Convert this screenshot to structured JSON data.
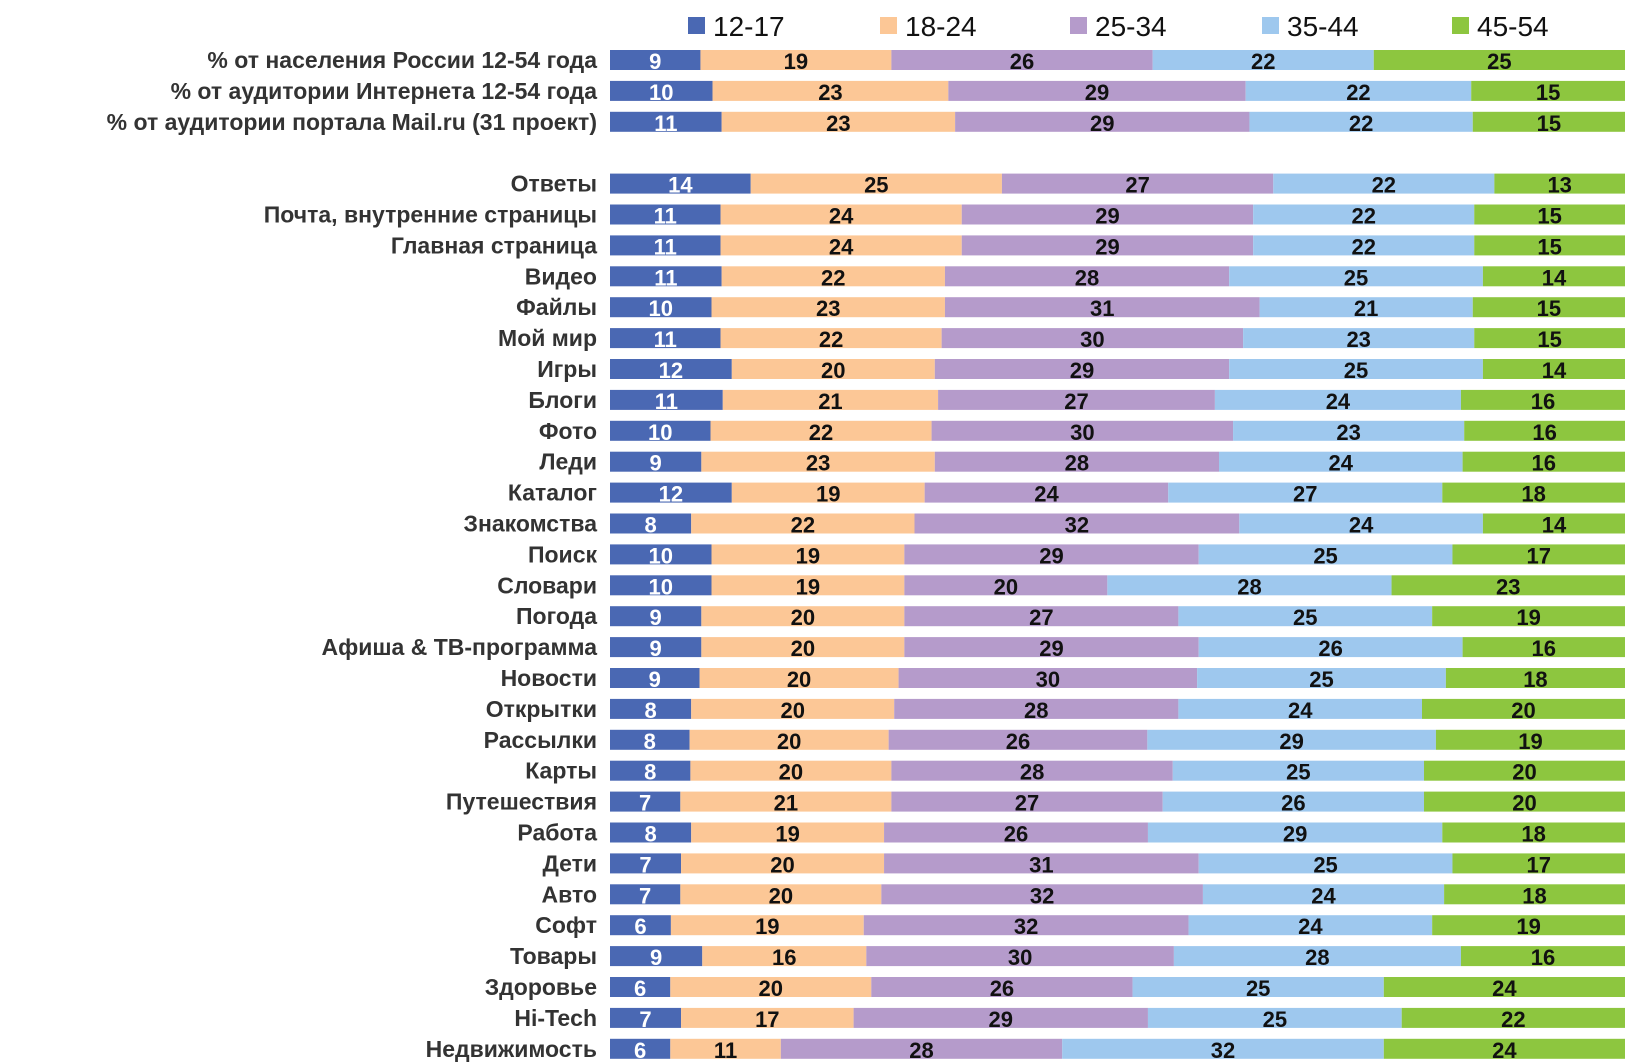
{
  "chart_data": {
    "type": "bar",
    "orientation": "horizontal",
    "stacked": true,
    "title": "",
    "xlabel": "",
    "ylabel": "",
    "legend_position": "top",
    "grid": false,
    "categories": [
      "% от населения России 12-54 года",
      "% от аудитории Интернета 12-54 года",
      "% от аудитории портала Mail.ru (31 проект)",
      "",
      "Ответы",
      "Почта, внутренние страницы",
      "Главная страница",
      "Видео",
      "Файлы",
      "Мой мир",
      "Игры",
      "Блоги",
      "Фото",
      "Леди",
      "Каталог",
      "Знакомства",
      "Поиск",
      "Словари",
      "Погода",
      "Афиша & ТВ-программа",
      "Новости",
      "Открытки",
      "Рассылки",
      "Карты",
      "Путешествия",
      "Работа",
      "Дети",
      "Авто",
      "Софт",
      "Товары",
      "Здоровье",
      "Hi-Tech",
      "Недвижимость"
    ],
    "series": [
      {
        "name": "12-17",
        "color": "#4a68b3",
        "label_color": "#ffffff",
        "values": [
          9,
          10,
          11,
          null,
          14,
          11,
          11,
          11,
          10,
          11,
          12,
          11,
          10,
          9,
          12,
          8,
          10,
          10,
          9,
          9,
          9,
          8,
          8,
          8,
          7,
          8,
          7,
          7,
          6,
          9,
          6,
          7,
          6
        ]
      },
      {
        "name": "18-24",
        "color": "#fcc796",
        "label_color": "#111111",
        "values": [
          19,
          23,
          23,
          null,
          25,
          24,
          24,
          22,
          23,
          22,
          20,
          21,
          22,
          23,
          19,
          22,
          19,
          19,
          20,
          20,
          20,
          20,
          20,
          20,
          21,
          19,
          20,
          20,
          19,
          16,
          20,
          17,
          11
        ]
      },
      {
        "name": "25-34",
        "color": "#b59bcb",
        "label_color": "#111111",
        "values": [
          26,
          29,
          29,
          null,
          27,
          29,
          29,
          28,
          31,
          30,
          29,
          27,
          30,
          28,
          24,
          32,
          29,
          20,
          27,
          29,
          30,
          28,
          26,
          28,
          27,
          26,
          31,
          32,
          32,
          30,
          26,
          29,
          28
        ]
      },
      {
        "name": "35-44",
        "color": "#9ec8ee",
        "label_color": "#111111",
        "values": [
          22,
          22,
          22,
          null,
          22,
          22,
          22,
          25,
          21,
          23,
          25,
          24,
          23,
          24,
          27,
          24,
          25,
          28,
          25,
          26,
          25,
          24,
          29,
          25,
          26,
          29,
          25,
          24,
          24,
          28,
          25,
          25,
          32
        ]
      },
      {
        "name": "45-54",
        "color": "#8dc63f",
        "label_color": "#111111",
        "values": [
          25,
          15,
          15,
          null,
          13,
          15,
          15,
          14,
          15,
          15,
          14,
          16,
          16,
          16,
          18,
          14,
          17,
          23,
          19,
          16,
          18,
          20,
          19,
          20,
          20,
          18,
          17,
          18,
          19,
          16,
          24,
          22,
          24
        ]
      }
    ]
  }
}
